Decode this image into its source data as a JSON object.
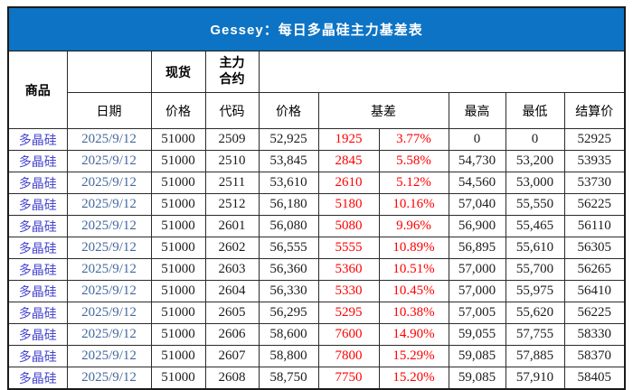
{
  "title": "Gessey：每日多晶硅主力基差表",
  "colors": {
    "title_bg": "#0d73c4",
    "header_light": "#dce6f1",
    "grid_faint": "#c3d2e4",
    "basis_red": "#fe0000",
    "commodity_blue": "#4646d0",
    "date_blue": "#44689c",
    "border_dark": "#1a1a1a"
  },
  "header": {
    "commodity": "商品",
    "date": "日期",
    "spot": "现货",
    "main_contract": "主力\n合约",
    "spot_price": "价格",
    "code": "代码",
    "price": "价格",
    "basis": "基差",
    "high": "最高",
    "low": "最低",
    "settlement": "结算价"
  },
  "chart_data": {
    "type": "table",
    "title": "Gessey：每日多晶硅主力基差表",
    "columns": [
      "商品",
      "日期",
      "现货价格",
      "主力合约代码",
      "主力合约价格",
      "基差",
      "基差%",
      "最高",
      "最低",
      "结算价"
    ],
    "rows": [
      [
        "多晶硅",
        "2025/9/12",
        "51000",
        "2509",
        "52,925",
        "1925",
        "3.77%",
        "0",
        "0",
        "52925"
      ],
      [
        "多晶硅",
        "2025/9/12",
        "51000",
        "2510",
        "53,845",
        "2845",
        "5.58%",
        "54,730",
        "53,200",
        "53935"
      ],
      [
        "多晶硅",
        "2025/9/12",
        "51000",
        "2511",
        "53,610",
        "2610",
        "5.12%",
        "54,560",
        "53,000",
        "53730"
      ],
      [
        "多晶硅",
        "2025/9/12",
        "51000",
        "2512",
        "56,180",
        "5180",
        "10.16%",
        "57,040",
        "55,550",
        "56225"
      ],
      [
        "多晶硅",
        "2025/9/12",
        "51000",
        "2601",
        "56,080",
        "5080",
        "9.96%",
        "56,900",
        "55,465",
        "56110"
      ],
      [
        "多晶硅",
        "2025/9/12",
        "51000",
        "2602",
        "56,555",
        "5555",
        "10.89%",
        "56,895",
        "55,610",
        "56305"
      ],
      [
        "多晶硅",
        "2025/9/12",
        "51000",
        "2603",
        "56,360",
        "5360",
        "10.51%",
        "57,000",
        "55,700",
        "56265"
      ],
      [
        "多晶硅",
        "2025/9/12",
        "51000",
        "2604",
        "56,330",
        "5330",
        "10.45%",
        "57,000",
        "55,975",
        "56410"
      ],
      [
        "多晶硅",
        "2025/9/12",
        "51000",
        "2605",
        "56,295",
        "5295",
        "10.38%",
        "57,005",
        "55,620",
        "56225"
      ],
      [
        "多晶硅",
        "2025/9/12",
        "51000",
        "2606",
        "58,600",
        "7600",
        "14.90%",
        "59,055",
        "57,755",
        "58330"
      ],
      [
        "多晶硅",
        "2025/9/12",
        "51000",
        "2607",
        "58,800",
        "7800",
        "15.29%",
        "59,085",
        "57,885",
        "58370"
      ],
      [
        "多晶硅",
        "2025/9/12",
        "51000",
        "2608",
        "58,750",
        "7750",
        "15.20%",
        "59,085",
        "57,910",
        "58405"
      ]
    ]
  }
}
